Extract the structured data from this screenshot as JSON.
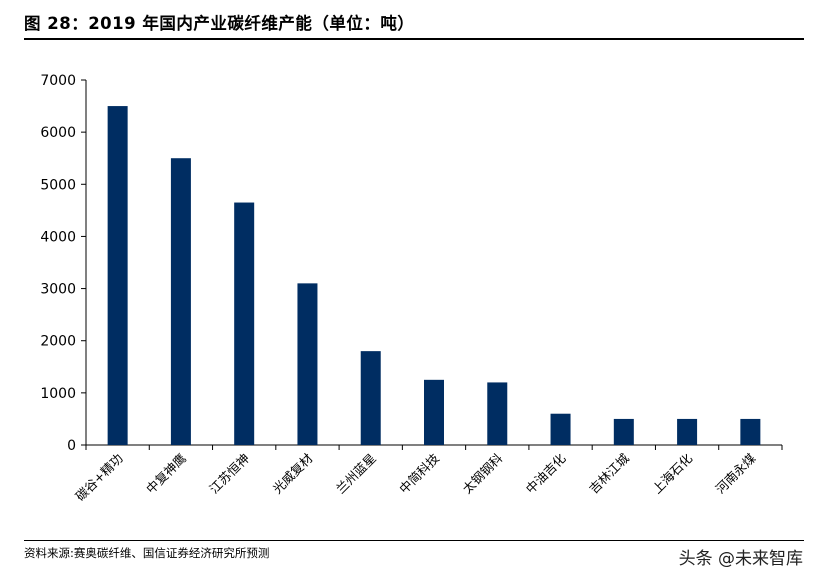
{
  "header": {
    "title": "图 28：2019 年国内产业碳纤维产能（单位：吨）"
  },
  "footer": {
    "source": "资料来源:赛奥碳纤维、国信证券经济研究所预测"
  },
  "watermark": {
    "text": "头条 @未来智库"
  },
  "colors": {
    "bar": "#002d62",
    "axis": "#000000"
  },
  "chart_data": {
    "type": "bar",
    "title": "",
    "xlabel": "",
    "ylabel": "",
    "ylim": [
      0,
      7000
    ],
    "yticks": [
      0,
      1000,
      2000,
      3000,
      4000,
      5000,
      6000,
      7000
    ],
    "grid": false,
    "categories": [
      "碳谷+精功",
      "中复神鹰",
      "江苏恒神",
      "光威复材",
      "兰州蓝星",
      "中简科技",
      "太钢钢科",
      "中油吉化",
      "吉林江城",
      "上海石化",
      "河南永煤"
    ],
    "values": [
      6500,
      5500,
      4650,
      3100,
      1800,
      1250,
      1200,
      600,
      500,
      500,
      500
    ]
  }
}
